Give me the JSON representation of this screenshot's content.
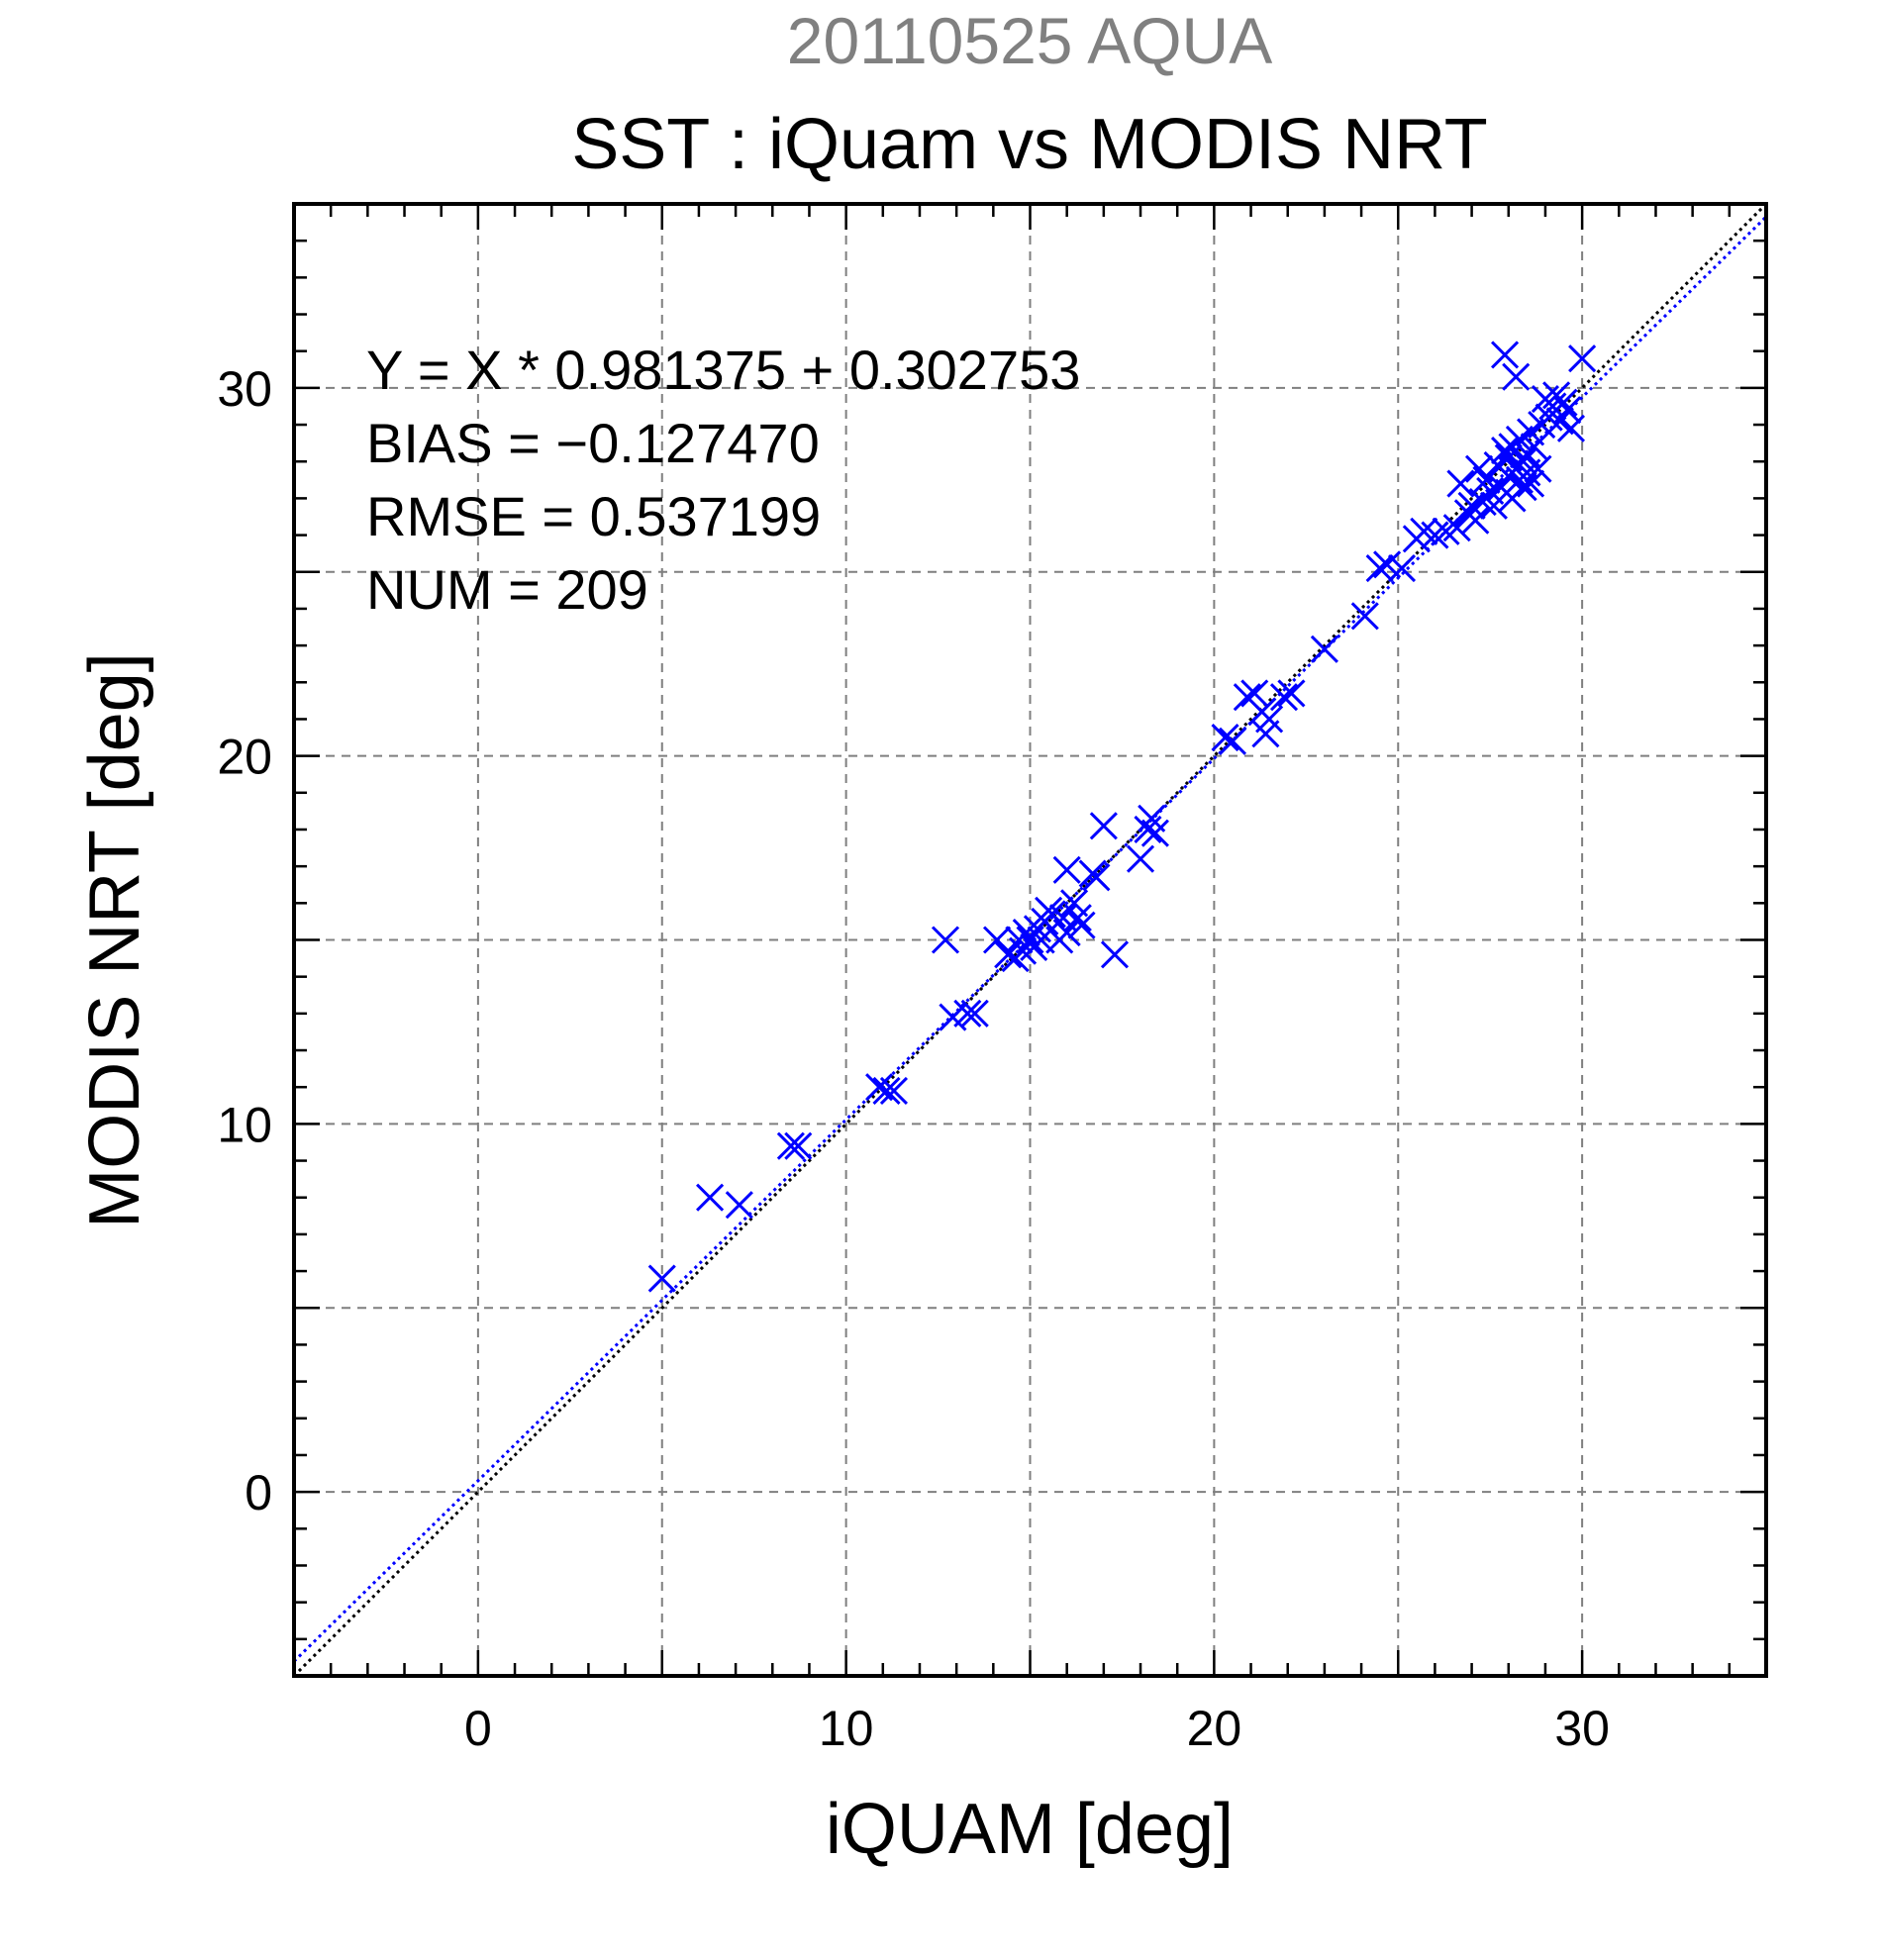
{
  "chart_data": {
    "type": "scatter",
    "title": "20110525 AQUA",
    "subtitle": "SST : iQuam vs MODIS NRT",
    "xlabel": "iQUAM [deg]",
    "ylabel": "MODIS NRT [deg]",
    "xlim": [
      -5,
      35
    ],
    "ylim": [
      -5,
      35
    ],
    "xticks": [
      0,
      10,
      20,
      30
    ],
    "yticks": [
      0,
      10,
      20,
      30
    ],
    "grid": true,
    "stats": {
      "equation": "Y = X * 0.981375 + 0.302753",
      "bias": "BIAS = −0.127470",
      "rmse": "RMSE = 0.537199",
      "num": "NUM = 209"
    },
    "colors": {
      "points": "#0000ff",
      "fit_line": "#0000ff",
      "identity_line": "#000000",
      "grid": "#7f7f7f"
    },
    "fit": {
      "slope": 0.981375,
      "intercept": 0.302753
    },
    "series": [
      {
        "marker": "x",
        "points": [
          [
            5.0,
            5.8
          ],
          [
            6.3,
            8.0
          ],
          [
            7.1,
            7.8
          ],
          [
            8.5,
            9.4
          ],
          [
            8.7,
            9.4
          ],
          [
            10.9,
            11.0
          ],
          [
            11.1,
            10.9
          ],
          [
            11.3,
            10.9
          ],
          [
            12.7,
            15.0
          ],
          [
            12.9,
            12.9
          ],
          [
            13.3,
            13.0
          ],
          [
            13.5,
            13.0
          ],
          [
            14.1,
            15.0
          ],
          [
            14.4,
            14.6
          ],
          [
            14.6,
            14.5
          ],
          [
            14.7,
            15.0
          ],
          [
            14.8,
            14.7
          ],
          [
            14.9,
            15.2
          ],
          [
            15.0,
            15.0
          ],
          [
            15.1,
            14.8
          ],
          [
            15.2,
            15.3
          ],
          [
            15.3,
            15.0
          ],
          [
            15.4,
            15.5
          ],
          [
            15.5,
            15.8
          ],
          [
            15.6,
            15.7
          ],
          [
            15.8,
            15.0
          ],
          [
            15.9,
            15.6
          ],
          [
            16.0,
            15.2
          ],
          [
            16.0,
            16.9
          ],
          [
            16.2,
            16.0
          ],
          [
            16.3,
            15.6
          ],
          [
            16.4,
            15.4
          ],
          [
            16.7,
            16.8
          ],
          [
            16.8,
            16.7
          ],
          [
            17.0,
            18.1
          ],
          [
            17.3,
            14.6
          ],
          [
            18.0,
            17.2
          ],
          [
            18.2,
            18.0
          ],
          [
            18.3,
            18.3
          ],
          [
            18.4,
            17.9
          ],
          [
            20.3,
            20.5
          ],
          [
            20.5,
            20.4
          ],
          [
            20.9,
            21.6
          ],
          [
            21.1,
            21.7
          ],
          [
            21.3,
            21.2
          ],
          [
            21.4,
            20.6
          ],
          [
            21.5,
            21.0
          ],
          [
            21.9,
            21.6
          ],
          [
            22.1,
            21.7
          ],
          [
            23.0,
            22.9
          ],
          [
            24.1,
            23.8
          ],
          [
            24.5,
            25.1
          ],
          [
            24.7,
            25.2
          ],
          [
            25.1,
            25.1
          ],
          [
            25.5,
            25.9
          ],
          [
            25.7,
            26.1
          ],
          [
            26.0,
            26.0
          ],
          [
            26.3,
            26.1
          ],
          [
            26.6,
            26.2
          ],
          [
            26.7,
            27.4
          ],
          [
            26.9,
            26.6
          ],
          [
            27.0,
            26.8
          ],
          [
            27.1,
            26.4
          ],
          [
            27.2,
            27.8
          ],
          [
            27.3,
            26.9
          ],
          [
            27.4,
            27.5
          ],
          [
            27.5,
            27.2
          ],
          [
            27.6,
            26.8
          ],
          [
            27.7,
            27.9
          ],
          [
            27.8,
            27.3
          ],
          [
            27.9,
            30.9
          ],
          [
            27.9,
            28.3
          ],
          [
            28.0,
            27.6
          ],
          [
            28.0,
            28.1
          ],
          [
            28.1,
            28.4
          ],
          [
            28.1,
            27.0
          ],
          [
            28.2,
            27.8
          ],
          [
            28.2,
            30.3
          ],
          [
            28.3,
            28.6
          ],
          [
            28.3,
            27.5
          ],
          [
            28.4,
            28.0
          ],
          [
            28.4,
            27.3
          ],
          [
            28.5,
            28.2
          ],
          [
            28.5,
            27.7
          ],
          [
            28.6,
            28.8
          ],
          [
            28.6,
            27.4
          ],
          [
            28.7,
            28.4
          ],
          [
            28.8,
            27.8
          ],
          [
            28.9,
            29.0
          ],
          [
            29.0,
            29.7
          ],
          [
            29.1,
            29.2
          ],
          [
            29.2,
            29.5
          ],
          [
            29.3,
            29.8
          ],
          [
            29.4,
            29.1
          ],
          [
            29.5,
            29.6
          ],
          [
            29.6,
            29.4
          ],
          [
            29.7,
            28.9
          ],
          [
            30.0,
            30.8
          ]
        ]
      }
    ]
  }
}
